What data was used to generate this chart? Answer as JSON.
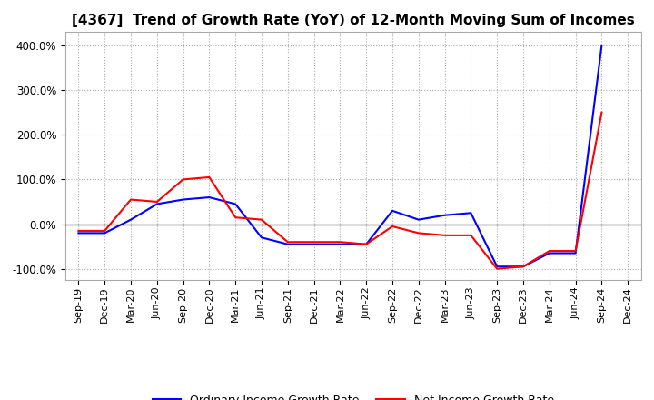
{
  "title": "[4367]  Trend of Growth Rate (YoY) of 12-Month Moving Sum of Incomes",
  "x_labels": [
    "Sep-19",
    "Dec-19",
    "Mar-20",
    "Jun-20",
    "Sep-20",
    "Dec-20",
    "Mar-21",
    "Jun-21",
    "Sep-21",
    "Dec-21",
    "Mar-22",
    "Jun-22",
    "Sep-22",
    "Dec-22",
    "Mar-23",
    "Jun-23",
    "Sep-23",
    "Dec-23",
    "Mar-24",
    "Jun-24",
    "Sep-24",
    "Dec-24"
  ],
  "ordinary_income": [
    -20,
    -20,
    10,
    45,
    55,
    60,
    45,
    -30,
    -45,
    -45,
    -45,
    -45,
    30,
    10,
    20,
    25,
    -95,
    -95,
    -65,
    -65,
    400,
    null
  ],
  "net_income": [
    -15,
    -15,
    55,
    50,
    100,
    105,
    15,
    10,
    -40,
    -40,
    -40,
    -45,
    -5,
    -20,
    -25,
    -25,
    -100,
    -95,
    -60,
    -60,
    250,
    null
  ],
  "ylim": [
    -125,
    430
  ],
  "yticks": [
    -100,
    0,
    100,
    200,
    300,
    400
  ],
  "ordinary_color": "#0000FF",
  "net_color": "#FF0000",
  "background_color": "#FFFFFF",
  "grid_color": "#AAAAAA",
  "legend_ordinary": "Ordinary Income Growth Rate",
  "legend_net": "Net Income Growth Rate",
  "title_fontsize": 11,
  "tick_fontsize": 8,
  "ytick_fontsize": 8.5,
  "legend_fontsize": 9
}
